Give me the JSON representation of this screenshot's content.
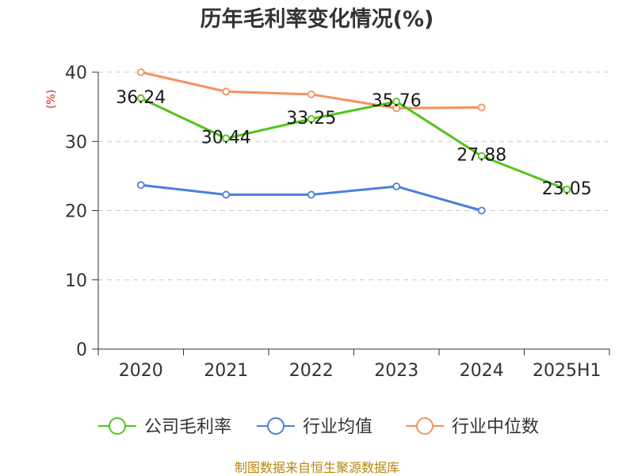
{
  "chart_data": {
    "type": "line",
    "title": "历年毛利率变化情况(%)",
    "ylabel": "(%)",
    "categories": [
      "2020",
      "2021",
      "2022",
      "2023",
      "2024",
      "2025H1"
    ],
    "ylim": [
      0,
      40
    ],
    "yticks": [
      0,
      10,
      20,
      30,
      40
    ],
    "grid": true,
    "legend_position": "bottom",
    "series": [
      {
        "name": "公司毛利率",
        "color": "#52c41a",
        "values": [
          36.24,
          30.44,
          33.25,
          35.76,
          27.88,
          23.05
        ],
        "labels": [
          "36.24",
          "30.44",
          "33.25",
          "35.76",
          "27.88",
          "23.05"
        ]
      },
      {
        "name": "行业均值",
        "color": "#4a7fdc",
        "values": [
          23.7,
          22.3,
          22.3,
          23.5,
          20.0,
          null
        ]
      },
      {
        "name": "行业中位数",
        "color": "#f59160",
        "values": [
          40.0,
          37.2,
          36.8,
          34.8,
          34.9,
          null
        ]
      }
    ]
  },
  "source": "制图数据来自恒生聚源数据库"
}
